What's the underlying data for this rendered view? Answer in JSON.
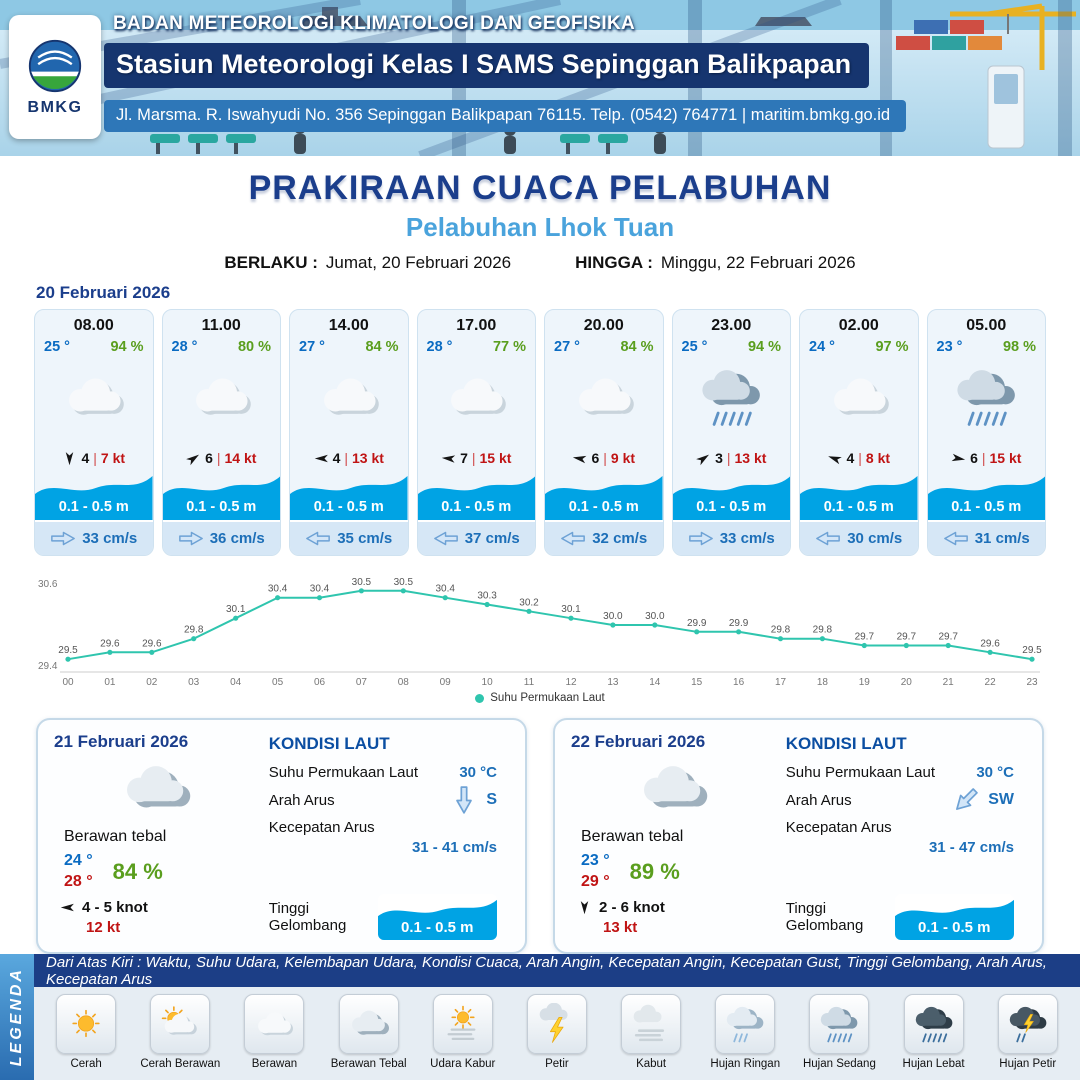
{
  "header": {
    "agency": "BADAN METEOROLOGI KLIMATOLOGI DAN GEOFISIKA",
    "station": "Stasiun Meteorologi Kelas I SAMS Sepinggan Balikpapan",
    "address": "Jl. Marsma. R. Iswahyudi No. 356 Sepinggan Balikpapan 76115. Telp. (0542) 764771 | maritim.bmkg.go.id",
    "logo_text": "BMKG"
  },
  "title": {
    "main": "PRAKIRAAN CUACA PELABUHAN",
    "port": "Pelabuhan Lhok Tuan",
    "valid_label": "BERLAKU :",
    "valid_date": "Jumat, 20 Februari 2026",
    "until_label": "HINGGA :",
    "until_date": "Minggu, 22 Februari 2026"
  },
  "forecast": {
    "date": "20 Februari 2026",
    "separator": "|",
    "cards": [
      {
        "time": "08.00",
        "temp": "25 °",
        "humidity": "94 %",
        "icon": "berawan",
        "wind_deg": 90,
        "wind_val": "4",
        "wind_gust": "7 kt",
        "wave": "0.1 - 0.5 m",
        "current": "33 cm/s",
        "current_dir": "right"
      },
      {
        "time": "11.00",
        "temp": "28 °",
        "humidity": "80 %",
        "icon": "berawan",
        "wind_deg": -35,
        "wind_val": "6",
        "wind_gust": "14 kt",
        "wave": "0.1 - 0.5 m",
        "current": "36 cm/s",
        "current_dir": "right"
      },
      {
        "time": "14.00",
        "temp": "27 °",
        "humidity": "84 %",
        "icon": "berawan",
        "wind_deg": 180,
        "wind_val": "4",
        "wind_gust": "13 kt",
        "wave": "0.1 - 0.5 m",
        "current": "35 cm/s",
        "current_dir": "left"
      },
      {
        "time": "17.00",
        "temp": "28 °",
        "humidity": "77 %",
        "icon": "berawan",
        "wind_deg": 185,
        "wind_val": "7",
        "wind_gust": "15 kt",
        "wave": "0.1 - 0.5 m",
        "current": "37 cm/s",
        "current_dir": "left"
      },
      {
        "time": "20.00",
        "temp": "27 °",
        "humidity": "84 %",
        "icon": "berawan",
        "wind_deg": 190,
        "wind_val": "6",
        "wind_gust": "9 kt",
        "wave": "0.1 - 0.5 m",
        "current": "32 cm/s",
        "current_dir": "left"
      },
      {
        "time": "23.00",
        "temp": "25 °",
        "humidity": "94 %",
        "icon": "hujan-sedang",
        "wind_deg": -35,
        "wind_val": "3",
        "wind_gust": "13 kt",
        "wave": "0.1 - 0.5 m",
        "current": "33 cm/s",
        "current_dir": "right"
      },
      {
        "time": "02.00",
        "temp": "24 °",
        "humidity": "97 %",
        "icon": "berawan",
        "wind_deg": 200,
        "wind_val": "4",
        "wind_gust": "8 kt",
        "wave": "0.1 - 0.5 m",
        "current": "30 cm/s",
        "current_dir": "left"
      },
      {
        "time": "05.00",
        "temp": "23 °",
        "humidity": "98 %",
        "icon": "hujan-sedang",
        "wind_deg": 10,
        "wind_val": "6",
        "wind_gust": "15 kt",
        "wave": "0.1 - 0.5 m",
        "current": "31 cm/s",
        "current_dir": "left"
      }
    ]
  },
  "chart_data": {
    "type": "line",
    "x": [
      "00",
      "01",
      "02",
      "03",
      "04",
      "05",
      "06",
      "07",
      "08",
      "09",
      "10",
      "11",
      "12",
      "13",
      "14",
      "15",
      "16",
      "17",
      "18",
      "19",
      "20",
      "21",
      "22",
      "23"
    ],
    "series": [
      {
        "name": "Suhu Permukaan Laut",
        "values": [
          29.5,
          29.6,
          29.6,
          29.8,
          30.1,
          30.4,
          30.4,
          30.5,
          30.5,
          30.4,
          30.3,
          30.2,
          30.1,
          30.0,
          30.0,
          29.9,
          29.9,
          29.8,
          29.8,
          29.7,
          29.7,
          29.7,
          29.6,
          29.5
        ]
      }
    ],
    "ylim": [
      29.4,
      30.6
    ],
    "line_color": "#2fc5ae",
    "legend_position": "bottom",
    "grid": false
  },
  "days": [
    {
      "date": "21 Februari 2026",
      "icon": "berawan-tebal",
      "condition": "Berawan tebal",
      "temp_min": "24 °",
      "temp_max": "28 °",
      "humidity": "84 %",
      "wind_deg": 180,
      "wind_range": "4 - 5 knot",
      "gust": "12 kt",
      "sea_title": "KONDISI LAUT",
      "sst_label": "Suhu Permukaan Laut",
      "sst": "30 °C",
      "dir_label": "Arah Arus",
      "dir": "S",
      "dir_deg": 90,
      "spd_label": "Kecepatan Arus",
      "spd": "31 - 41 cm/s",
      "wave_label": "Tinggi Gelombang",
      "wave": "0.1 - 0.5 m"
    },
    {
      "date": "22 Februari 2026",
      "icon": "berawan-tebal",
      "condition": "Berawan tebal",
      "temp_min": "23 °",
      "temp_max": "29 °",
      "humidity": "89 %",
      "wind_deg": 90,
      "wind_range": "2 - 6 knot",
      "gust": "13 kt",
      "sea_title": "KONDISI LAUT",
      "sst_label": "Suhu Permukaan Laut",
      "sst": "30 °C",
      "dir_label": "Arah Arus",
      "dir": "SW",
      "dir_deg": 135,
      "spd_label": "Kecepatan Arus",
      "spd": "31 - 47 cm/s",
      "wave_label": "Tinggi Gelombang",
      "wave": "0.1 - 0.5 m"
    }
  ],
  "legend": {
    "sidebar": "LEGENDA",
    "description": "Dari Atas Kiri : Waktu, Suhu Udara, Kelembapan Udara, Kondisi Cuaca, Arah Angin, Kecepatan Angin, Kecepatan Gust, Tinggi Gelombang, Arah Arus, Kecepatan Arus",
    "items": [
      {
        "label": "Cerah",
        "icon": "cerah"
      },
      {
        "label": "Cerah Berawan",
        "icon": "cerah-berawan"
      },
      {
        "label": "Berawan",
        "icon": "berawan"
      },
      {
        "label": "Berawan Tebal",
        "icon": "berawan-tebal"
      },
      {
        "label": "Udara Kabur",
        "icon": "udara-kabur"
      },
      {
        "label": "Petir",
        "icon": "petir"
      },
      {
        "label": "Kabut",
        "icon": "kabut"
      },
      {
        "label": "Hujan Ringan",
        "icon": "hujan-ringan"
      },
      {
        "label": "Hujan Sedang",
        "icon": "hujan-sedang"
      },
      {
        "label": "Hujan Lebat",
        "icon": "hujan-lebat"
      },
      {
        "label": "Hujan Petir",
        "icon": "hujan-petir"
      }
    ]
  }
}
